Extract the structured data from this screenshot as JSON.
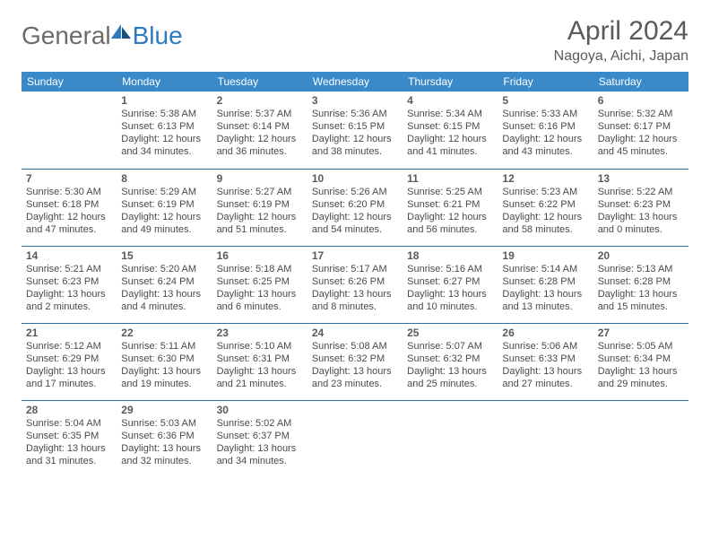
{
  "logo": {
    "general": "General",
    "blue": "Blue"
  },
  "header": {
    "title": "April 2024",
    "location": "Nagoya, Aichi, Japan"
  },
  "colors": {
    "header_bg": "#3a8ac9",
    "header_text": "#ffffff",
    "border": "#2d6fa5",
    "text": "#4a4a4a",
    "title": "#5a5a5a",
    "logo_gray": "#6b6b6b",
    "logo_blue": "#2d7bc0"
  },
  "weekdays": [
    "Sunday",
    "Monday",
    "Tuesday",
    "Wednesday",
    "Thursday",
    "Friday",
    "Saturday"
  ],
  "weeks": [
    [
      null,
      {
        "n": "1",
        "sr": "5:38 AM",
        "ss": "6:13 PM",
        "dh": "12",
        "dm": "34"
      },
      {
        "n": "2",
        "sr": "5:37 AM",
        "ss": "6:14 PM",
        "dh": "12",
        "dm": "36"
      },
      {
        "n": "3",
        "sr": "5:36 AM",
        "ss": "6:15 PM",
        "dh": "12",
        "dm": "38"
      },
      {
        "n": "4",
        "sr": "5:34 AM",
        "ss": "6:15 PM",
        "dh": "12",
        "dm": "41"
      },
      {
        "n": "5",
        "sr": "5:33 AM",
        "ss": "6:16 PM",
        "dh": "12",
        "dm": "43"
      },
      {
        "n": "6",
        "sr": "5:32 AM",
        "ss": "6:17 PM",
        "dh": "12",
        "dm": "45"
      }
    ],
    [
      {
        "n": "7",
        "sr": "5:30 AM",
        "ss": "6:18 PM",
        "dh": "12",
        "dm": "47"
      },
      {
        "n": "8",
        "sr": "5:29 AM",
        "ss": "6:19 PM",
        "dh": "12",
        "dm": "49"
      },
      {
        "n": "9",
        "sr": "5:27 AM",
        "ss": "6:19 PM",
        "dh": "12",
        "dm": "51"
      },
      {
        "n": "10",
        "sr": "5:26 AM",
        "ss": "6:20 PM",
        "dh": "12",
        "dm": "54"
      },
      {
        "n": "11",
        "sr": "5:25 AM",
        "ss": "6:21 PM",
        "dh": "12",
        "dm": "56"
      },
      {
        "n": "12",
        "sr": "5:23 AM",
        "ss": "6:22 PM",
        "dh": "12",
        "dm": "58"
      },
      {
        "n": "13",
        "sr": "5:22 AM",
        "ss": "6:23 PM",
        "dh": "13",
        "dm": "0"
      }
    ],
    [
      {
        "n": "14",
        "sr": "5:21 AM",
        "ss": "6:23 PM",
        "dh": "13",
        "dm": "2"
      },
      {
        "n": "15",
        "sr": "5:20 AM",
        "ss": "6:24 PM",
        "dh": "13",
        "dm": "4"
      },
      {
        "n": "16",
        "sr": "5:18 AM",
        "ss": "6:25 PM",
        "dh": "13",
        "dm": "6"
      },
      {
        "n": "17",
        "sr": "5:17 AM",
        "ss": "6:26 PM",
        "dh": "13",
        "dm": "8"
      },
      {
        "n": "18",
        "sr": "5:16 AM",
        "ss": "6:27 PM",
        "dh": "13",
        "dm": "10"
      },
      {
        "n": "19",
        "sr": "5:14 AM",
        "ss": "6:28 PM",
        "dh": "13",
        "dm": "13"
      },
      {
        "n": "20",
        "sr": "5:13 AM",
        "ss": "6:28 PM",
        "dh": "13",
        "dm": "15"
      }
    ],
    [
      {
        "n": "21",
        "sr": "5:12 AM",
        "ss": "6:29 PM",
        "dh": "13",
        "dm": "17"
      },
      {
        "n": "22",
        "sr": "5:11 AM",
        "ss": "6:30 PM",
        "dh": "13",
        "dm": "19"
      },
      {
        "n": "23",
        "sr": "5:10 AM",
        "ss": "6:31 PM",
        "dh": "13",
        "dm": "21"
      },
      {
        "n": "24",
        "sr": "5:08 AM",
        "ss": "6:32 PM",
        "dh": "13",
        "dm": "23"
      },
      {
        "n": "25",
        "sr": "5:07 AM",
        "ss": "6:32 PM",
        "dh": "13",
        "dm": "25"
      },
      {
        "n": "26",
        "sr": "5:06 AM",
        "ss": "6:33 PM",
        "dh": "13",
        "dm": "27"
      },
      {
        "n": "27",
        "sr": "5:05 AM",
        "ss": "6:34 PM",
        "dh": "13",
        "dm": "29"
      }
    ],
    [
      {
        "n": "28",
        "sr": "5:04 AM",
        "ss": "6:35 PM",
        "dh": "13",
        "dm": "31"
      },
      {
        "n": "29",
        "sr": "5:03 AM",
        "ss": "6:36 PM",
        "dh": "13",
        "dm": "32"
      },
      {
        "n": "30",
        "sr": "5:02 AM",
        "ss": "6:37 PM",
        "dh": "13",
        "dm": "34"
      },
      null,
      null,
      null,
      null
    ]
  ],
  "labels": {
    "sunrise": "Sunrise:",
    "sunset": "Sunset:",
    "daylight": "Daylight:",
    "hours": "hours",
    "and": "and",
    "minutes": "minutes."
  }
}
